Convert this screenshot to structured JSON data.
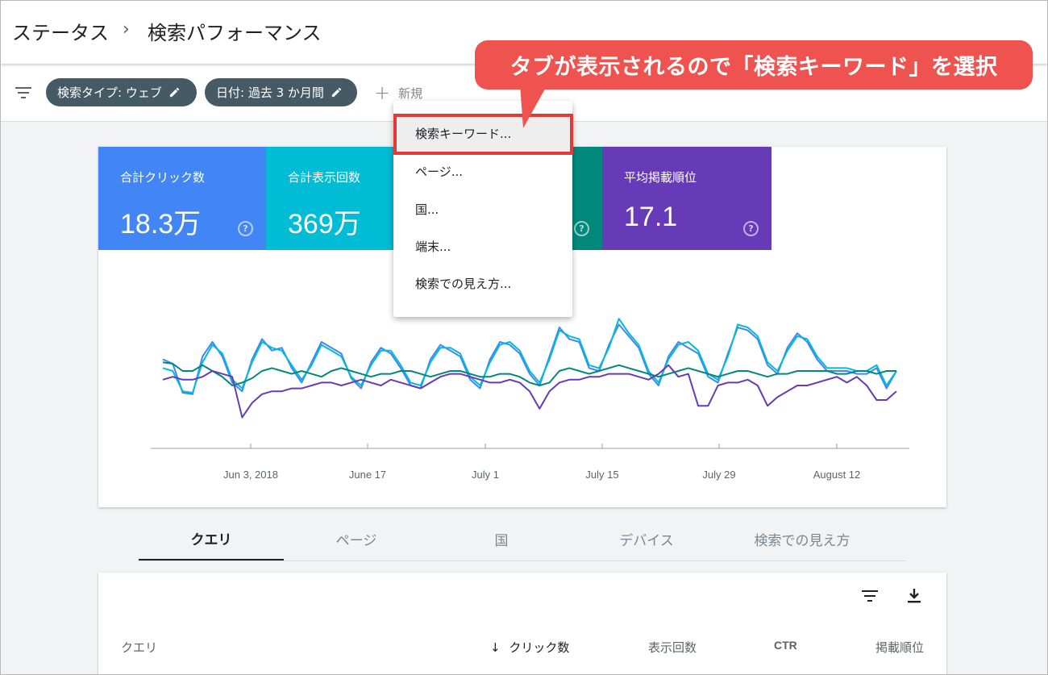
{
  "header": {
    "breadcrumb_parent": "ステータス",
    "breadcrumb_separator": "›",
    "page_title": "検索パフォーマンス"
  },
  "filters": {
    "chips": [
      {
        "label": "検索タイプ: ウェブ"
      },
      {
        "label": "日付: 過去 3 か月間"
      }
    ],
    "new_label": "新規",
    "new_icon": "+"
  },
  "metrics": [
    {
      "label": "合計クリック数",
      "value": "18.3万",
      "color": "#4285f4"
    },
    {
      "label": "合計表示回数",
      "value": "369万",
      "color": "#00bcd4"
    },
    {
      "label": "",
      "value": "",
      "color": "#00897b"
    },
    {
      "label": "平均掲載順位",
      "value": "17.1",
      "color": "#673ab7"
    }
  ],
  "help_glyph": "?",
  "menu": {
    "items": [
      "検索キーワード...",
      "ページ...",
      "国...",
      "端末...",
      "検索での見え方..."
    ],
    "highlighted_index": 0
  },
  "callout": {
    "text": "タブが表示されるので「検索キーワード」を選択",
    "color": "#ef5350"
  },
  "chart_data": {
    "type": "line",
    "x_ticks": [
      "Jun 3, 2018",
      "June 17",
      "July 1",
      "July 15",
      "July 29",
      "August 12"
    ],
    "series": [
      {
        "color": "#4285f4",
        "values": [
          58,
          55,
          35,
          34,
          60,
          70,
          60,
          42,
          36,
          58,
          72,
          64,
          66,
          52,
          42,
          56,
          70,
          66,
          62,
          45,
          38,
          56,
          66,
          62,
          52,
          40,
          38,
          58,
          68,
          64,
          60,
          44,
          38,
          58,
          70,
          68,
          62,
          48,
          40,
          60,
          80,
          72,
          70,
          52,
          50,
          68,
          82,
          74,
          66,
          48,
          40,
          60,
          70,
          66,
          62,
          46,
          42,
          62,
          80,
          78,
          72,
          54,
          48,
          66,
          76,
          70,
          58,
          50,
          50,
          50,
          48,
          48,
          52,
          38,
          50
        ]
      },
      {
        "color": "#00bcd4",
        "values": [
          52,
          50,
          36,
          35,
          56,
          68,
          62,
          44,
          38,
          56,
          70,
          66,
          64,
          54,
          44,
          54,
          68,
          64,
          60,
          46,
          40,
          54,
          64,
          64,
          54,
          42,
          40,
          56,
          66,
          66,
          62,
          46,
          40,
          56,
          68,
          70,
          64,
          50,
          42,
          58,
          78,
          74,
          72,
          54,
          52,
          66,
          86,
          76,
          68,
          50,
          42,
          58,
          68,
          70,
          64,
          48,
          44,
          60,
          82,
          80,
          74,
          56,
          50,
          64,
          74,
          72,
          60,
          52,
          52,
          52,
          50,
          50,
          54,
          40,
          50
        ]
      },
      {
        "color": "#00897b",
        "values": [
          56,
          55,
          50,
          50,
          54,
          50,
          46,
          40,
          42,
          45,
          50,
          52,
          50,
          48,
          50,
          48,
          46,
          50,
          52,
          50,
          48,
          46,
          48,
          48,
          50,
          50,
          48,
          46,
          48,
          50,
          50,
          48,
          46,
          46,
          48,
          48,
          46,
          42,
          40,
          42,
          50,
          52,
          50,
          48,
          50,
          52,
          54,
          52,
          50,
          48,
          46,
          48,
          50,
          52,
          50,
          48,
          46,
          48,
          50,
          50,
          48,
          46,
          48,
          48,
          50,
          50,
          50,
          50,
          48,
          48,
          50,
          50,
          48,
          50,
          50
        ]
      },
      {
        "color": "#673ab7",
        "values": [
          44,
          46,
          44,
          44,
          46,
          50,
          48,
          46,
          18,
          28,
          34,
          36,
          36,
          38,
          38,
          40,
          42,
          42,
          40,
          42,
          44,
          42,
          40,
          44,
          42,
          40,
          38,
          42,
          46,
          48,
          48,
          46,
          44,
          42,
          42,
          44,
          42,
          36,
          24,
          36,
          42,
          44,
          44,
          46,
          46,
          48,
          48,
          48,
          46,
          44,
          48,
          54,
          46,
          48,
          26,
          26,
          40,
          42,
          42,
          44,
          40,
          26,
          32,
          36,
          40,
          40,
          42,
          44,
          46,
          42,
          46,
          40,
          30,
          30,
          36
        ]
      }
    ],
    "ylim": [
      0,
      100
    ],
    "grid": false
  },
  "tabs": [
    {
      "label": "クエリ",
      "active": true
    },
    {
      "label": "ページ",
      "active": false
    },
    {
      "label": "国",
      "active": false
    },
    {
      "label": "デバイス",
      "active": false
    },
    {
      "label": "検索での見え方",
      "active": false
    }
  ],
  "table": {
    "sort_arrow": "↓",
    "columns": [
      "クエリ",
      "クリック数",
      "表示回数",
      "CTR",
      "掲載順位"
    ]
  }
}
